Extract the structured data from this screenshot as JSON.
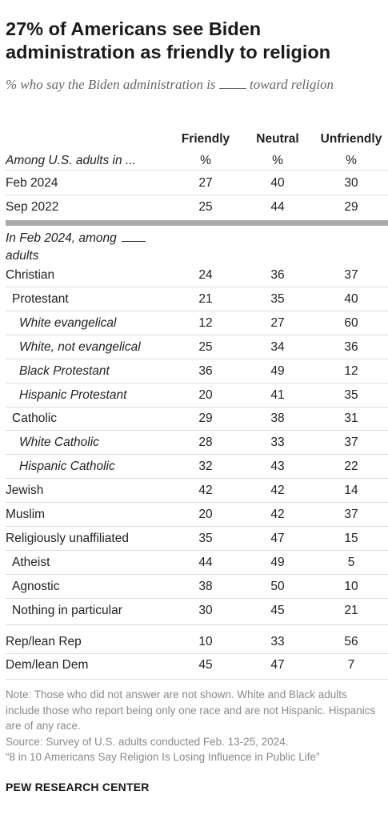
{
  "title": "27% of Americans see Biden administration as friendly to religion",
  "subtitle_before": "% who say the Biden administration is",
  "subtitle_after": "toward religion",
  "chart_data": {
    "type": "table",
    "columns": [
      "Friendly",
      "Neutral",
      "Unfriendly"
    ],
    "units": [
      "%",
      "%",
      "%"
    ],
    "section1_label": "Among U.S. adults in ...",
    "section2_label_before": "In Feb 2024, among",
    "section2_label_after": "adults",
    "rows": [
      {
        "label": "Feb 2024",
        "values": [
          27,
          40,
          30
        ]
      },
      {
        "label": "Sep 2022",
        "values": [
          25,
          44,
          29
        ]
      },
      {
        "label": "Christian",
        "values": [
          24,
          36,
          37
        ]
      },
      {
        "label": "Protestant",
        "values": [
          21,
          35,
          40
        ]
      },
      {
        "label": "White evangelical",
        "values": [
          12,
          27,
          60
        ]
      },
      {
        "label": "White, not evangelical",
        "values": [
          25,
          34,
          36
        ]
      },
      {
        "label": "Black Protestant",
        "values": [
          36,
          49,
          12
        ]
      },
      {
        "label": "Hispanic Protestant",
        "values": [
          20,
          41,
          35
        ]
      },
      {
        "label": "Catholic",
        "values": [
          29,
          38,
          31
        ]
      },
      {
        "label": "White Catholic",
        "values": [
          28,
          33,
          37
        ]
      },
      {
        "label": "Hispanic Catholic",
        "values": [
          32,
          43,
          22
        ]
      },
      {
        "label": "Jewish",
        "values": [
          42,
          42,
          14
        ]
      },
      {
        "label": "Muslim",
        "values": [
          20,
          42,
          37
        ]
      },
      {
        "label": "Religiously unaffiliated",
        "values": [
          35,
          47,
          15
        ]
      },
      {
        "label": "Atheist",
        "values": [
          44,
          49,
          5
        ]
      },
      {
        "label": "Agnostic",
        "values": [
          38,
          50,
          10
        ]
      },
      {
        "label": "Nothing in particular",
        "values": [
          30,
          45,
          21
        ]
      },
      {
        "label": "Rep/lean Rep",
        "values": [
          10,
          33,
          56
        ]
      },
      {
        "label": "Dem/lean Dem",
        "values": [
          45,
          47,
          7
        ]
      }
    ]
  },
  "notes": [
    "Note: Those who did not answer are not shown. White and Black adults include those who report being only one race and are not Hispanic. Hispanics are of any race.",
    "Source: Survey of U.S. adults conducted Feb. 13-25, 2024.",
    "“8 in 10 Americans Say Religion Is Losing Influence in Public Life”"
  ],
  "brand": "PEW RESEARCH CENTER"
}
